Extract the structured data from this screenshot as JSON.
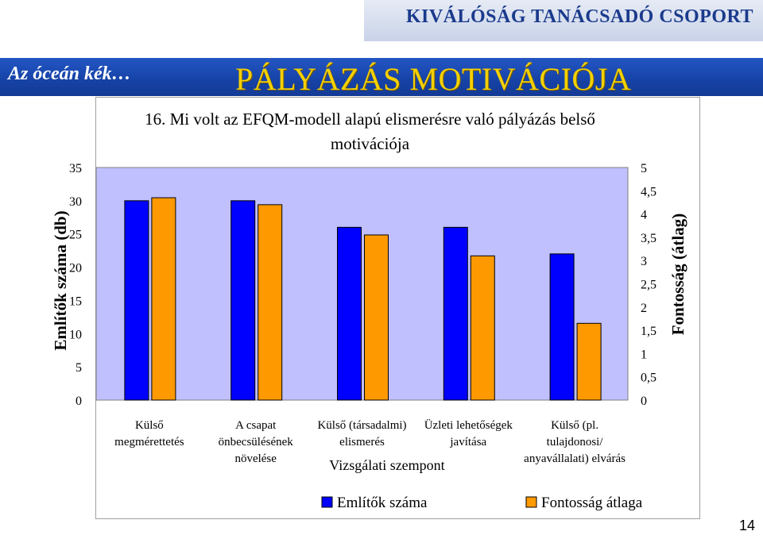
{
  "header": {
    "company": "KIVÁLÓSÁG TANÁCSADÓ CSOPORT",
    "slogan": "Az óceán kék…",
    "page_title": "PÁLYÁZÁS MOTIVÁCIÓJA"
  },
  "page_number": "14",
  "colors": {
    "series1": "#0000ff",
    "series2": "#ff9900",
    "plot_bg": "#c0c0ff"
  },
  "chart_data": {
    "type": "bar",
    "title": "16. Mi volt az EFQM-modell alapú elismerésre való pályázás belső motivációja",
    "title_lines": [
      "16. Mi volt az EFQM-modell alapú elismerésre való pályázás belső",
      "motivációja"
    ],
    "xlabel": "Vizsgálati szempont",
    "ylabel": "Említők száma (db)",
    "y2label": "Fontosság (átlag)",
    "categories": [
      "Külső megmérettetés",
      "A csapat önbecsülésének növelése",
      "Külső (társadalmi) elismerés",
      "Üzleti lehetőségek javítása",
      "Külső (pl. tulajdonosi/ anyavállalati) elvárás"
    ],
    "category_lines": [
      [
        "Külső",
        "megmérettetés"
      ],
      [
        "A csapat",
        "önbecsülésének",
        "növelése"
      ],
      [
        "Külső (társadalmi)",
        "elismerés"
      ],
      [
        "Üzleti lehetőségek",
        "javítása"
      ],
      [
        "Külső (pl.",
        "tulajdonosi/",
        "anyavállalati) elvárás"
      ]
    ],
    "series": [
      {
        "name": "Említők száma",
        "axis": "left",
        "values": [
          30,
          30,
          26,
          26,
          22
        ]
      },
      {
        "name": "Fontosság átlaga",
        "axis": "right",
        "values": [
          4.35,
          4.2,
          3.55,
          3.1,
          1.65
        ]
      }
    ],
    "ylim": [
      0,
      35
    ],
    "yticks": [
      "0",
      "5",
      "10",
      "15",
      "20",
      "25",
      "30",
      "35"
    ],
    "y2lim": [
      0,
      5
    ],
    "y2ticks": [
      "0",
      "0,5",
      "1",
      "1,5",
      "2",
      "2,5",
      "3",
      "3,5",
      "4",
      "4,5",
      "5"
    ],
    "legend_position": "bottom",
    "grid": false
  }
}
